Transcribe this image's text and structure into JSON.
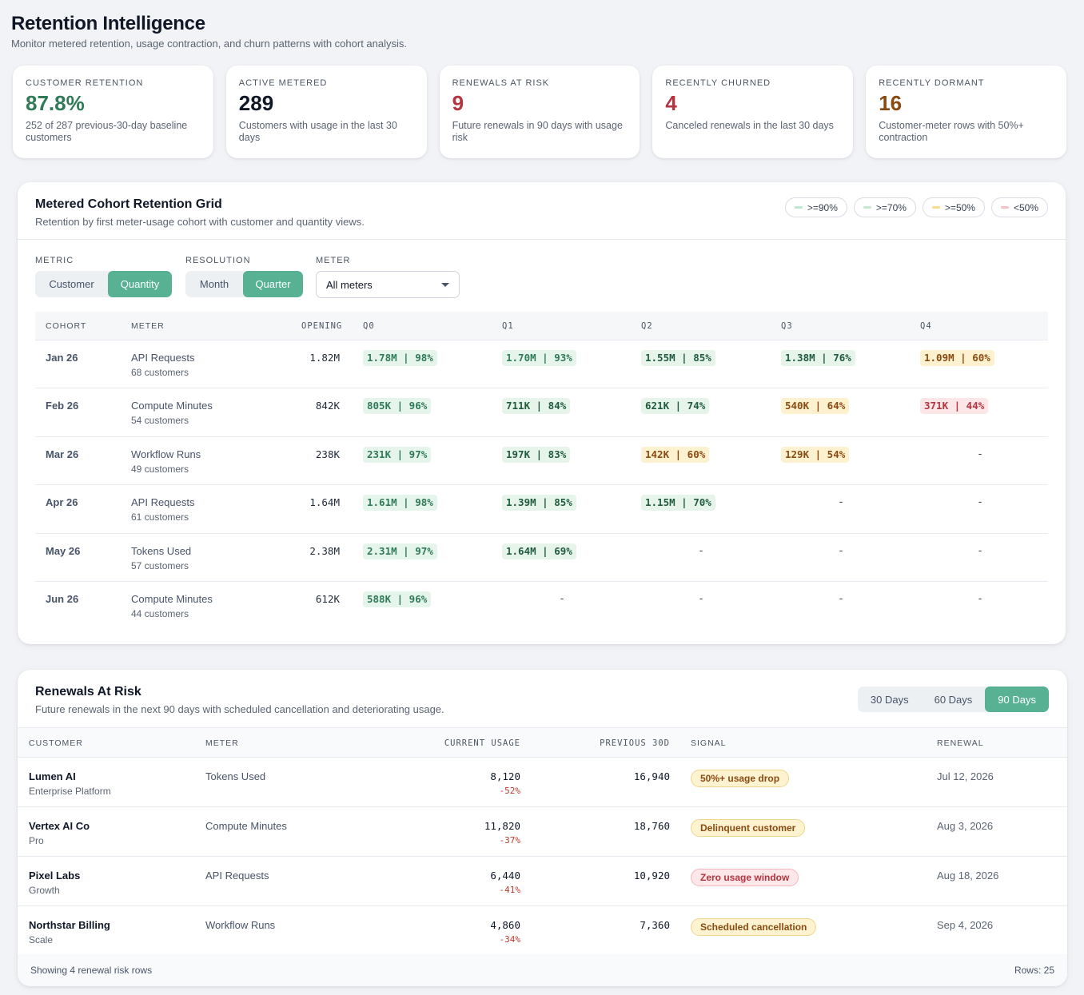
{
  "header": {
    "title": "Retention Intelligence",
    "subtitle": "Monitor metered retention, usage contraction, and churn patterns with cohort analysis."
  },
  "kpis": [
    {
      "label": "CUSTOMER RETENTION",
      "value": "87.8%",
      "desc": "252 of 287 previous-30-day baseline customers",
      "color": "#2f7a57"
    },
    {
      "label": "ACTIVE METERED",
      "value": "289",
      "desc": "Customers with usage in the last 30 days",
      "color": "#101828"
    },
    {
      "label": "RENEWALS AT RISK",
      "value": "9",
      "desc": "Future renewals in 90 days with usage risk",
      "color": "#b4343f"
    },
    {
      "label": "RECENTLY CHURNED",
      "value": "4",
      "desc": "Canceled renewals in the last 30 days",
      "color": "#b4343f"
    },
    {
      "label": "RECENTLY DORMANT",
      "value": "16",
      "desc": "Customer-meter rows with 50%+ contraction",
      "color": "#8a4b12"
    }
  ],
  "cohort": {
    "title": "Metered Cohort Retention Grid",
    "subtitle": "Retention by first meter-usage cohort with customer and quantity views.",
    "legend": [
      {
        "label": ">=90%",
        "color": "#bfe6d1"
      },
      {
        "label": ">=70%",
        "color": "#c6e8cf"
      },
      {
        "label": ">=50%",
        "color": "#f6dc8c"
      },
      {
        "label": "<50%",
        "color": "#f4c2c6"
      }
    ],
    "controls": {
      "metric_label": "METRIC",
      "metric_options": [
        "Customer",
        "Quantity"
      ],
      "metric_selected": "Quantity",
      "resolution_label": "RESOLUTION",
      "resolution_options": [
        "Month",
        "Quarter"
      ],
      "resolution_selected": "Quarter",
      "meter_label": "METER",
      "meter_value": "All meters"
    },
    "columns": [
      "COHORT",
      "METER",
      "OPENING",
      "Q0",
      "Q1",
      "Q2",
      "Q3",
      "Q4"
    ],
    "rows": [
      {
        "cohort": "Jan 26",
        "meter": "API Requests",
        "customers": "68 customers",
        "opening": "1.82M",
        "cells": [
          {
            "text": "1.78M | 98%",
            "tier": "t90"
          },
          {
            "text": "1.70M | 93%",
            "tier": "t90"
          },
          {
            "text": "1.55M | 85%",
            "tier": "t70"
          },
          {
            "text": "1.38M | 76%",
            "tier": "t70"
          },
          {
            "text": "1.09M | 60%",
            "tier": "t50"
          }
        ]
      },
      {
        "cohort": "Feb 26",
        "meter": "Compute Minutes",
        "customers": "54 customers",
        "opening": "842K",
        "cells": [
          {
            "text": "805K | 96%",
            "tier": "t90"
          },
          {
            "text": "711K | 84%",
            "tier": "t70"
          },
          {
            "text": "621K | 74%",
            "tier": "t70"
          },
          {
            "text": "540K | 64%",
            "tier": "t50"
          },
          {
            "text": "371K | 44%",
            "tier": "t0"
          }
        ]
      },
      {
        "cohort": "Mar 26",
        "meter": "Workflow Runs",
        "customers": "49 customers",
        "opening": "238K",
        "cells": [
          {
            "text": "231K | 97%",
            "tier": "t90"
          },
          {
            "text": "197K | 83%",
            "tier": "t70"
          },
          {
            "text": "142K | 60%",
            "tier": "t50"
          },
          {
            "text": "129K | 54%",
            "tier": "t50"
          },
          {
            "text": "-",
            "tier": "none"
          }
        ]
      },
      {
        "cohort": "Apr 26",
        "meter": "API Requests",
        "customers": "61 customers",
        "opening": "1.64M",
        "cells": [
          {
            "text": "1.61M | 98%",
            "tier": "t90"
          },
          {
            "text": "1.39M | 85%",
            "tier": "t70"
          },
          {
            "text": "1.15M | 70%",
            "tier": "t70"
          },
          {
            "text": "-",
            "tier": "none"
          },
          {
            "text": "-",
            "tier": "none"
          }
        ]
      },
      {
        "cohort": "May 26",
        "meter": "Tokens Used",
        "customers": "57 customers",
        "opening": "2.38M",
        "cells": [
          {
            "text": "2.31M | 97%",
            "tier": "t90"
          },
          {
            "text": "1.64M | 69%",
            "tier": "t70"
          },
          {
            "text": "-",
            "tier": "none"
          },
          {
            "text": "-",
            "tier": "none"
          },
          {
            "text": "-",
            "tier": "none"
          }
        ]
      },
      {
        "cohort": "Jun 26",
        "meter": "Compute Minutes",
        "customers": "44 customers",
        "opening": "612K",
        "cells": [
          {
            "text": "588K | 96%",
            "tier": "t90"
          },
          {
            "text": "-",
            "tier": "none"
          },
          {
            "text": "-",
            "tier": "none"
          },
          {
            "text": "-",
            "tier": "none"
          },
          {
            "text": "-",
            "tier": "none"
          }
        ]
      }
    ]
  },
  "renewals": {
    "title": "Renewals At Risk",
    "subtitle": "Future renewals in the next 90 days with scheduled cancellation and deteriorating usage.",
    "ranges": [
      "30 Days",
      "60 Days",
      "90 Days"
    ],
    "range_selected": "90 Days",
    "columns": [
      "CUSTOMER",
      "METER",
      "CURRENT USAGE",
      "PREVIOUS 30D",
      "SIGNAL",
      "RENEWAL"
    ],
    "rows": [
      {
        "name": "Lumen AI",
        "plan": "Enterprise Platform",
        "meter": "Tokens Used",
        "current": "8,120",
        "change": "-52%",
        "previous": "16,940",
        "signal": "50%+ usage drop",
        "signal_kind": "warn",
        "renewal": "Jul 12, 2026"
      },
      {
        "name": "Vertex AI Co",
        "plan": "Pro",
        "meter": "Compute Minutes",
        "current": "11,820",
        "change": "-37%",
        "previous": "18,760",
        "signal": "Delinquent customer",
        "signal_kind": "warn",
        "renewal": "Aug 3, 2026"
      },
      {
        "name": "Pixel Labs",
        "plan": "Growth",
        "meter": "API Requests",
        "current": "6,440",
        "change": "-41%",
        "previous": "10,920",
        "signal": "Zero usage window",
        "signal_kind": "bad",
        "renewal": "Aug 18, 2026"
      },
      {
        "name": "Northstar Billing",
        "plan": "Scale",
        "meter": "Workflow Runs",
        "current": "4,860",
        "change": "-34%",
        "previous": "7,360",
        "signal": "Scheduled cancellation",
        "signal_kind": "warn",
        "renewal": "Sep 4, 2026"
      }
    ],
    "footer_left": "Showing 4 renewal risk rows",
    "footer_right": "Rows: 25"
  }
}
